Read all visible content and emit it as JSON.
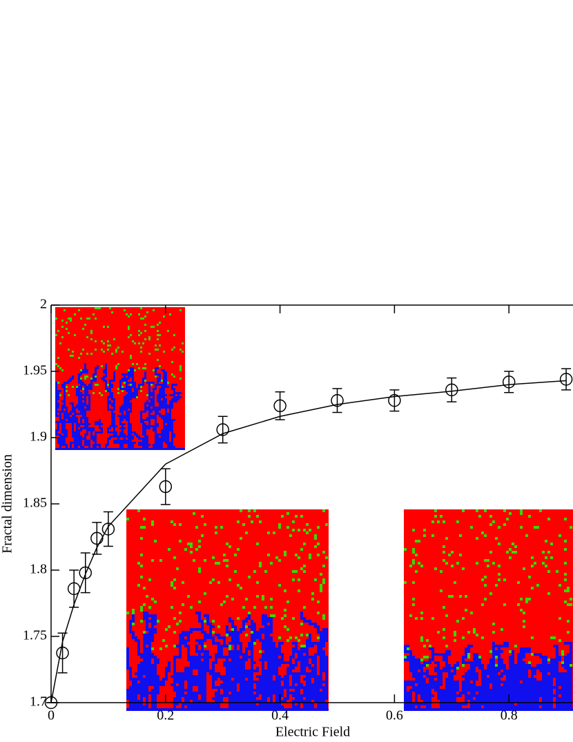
{
  "chart_data": {
    "type": "scatter",
    "x_label": "Electric Field",
    "y_label": "Fractal dimension",
    "x": [
      0,
      0.02,
      0.04,
      0.06,
      0.08,
      0.1,
      0.2,
      0.3,
      0.4,
      0.5,
      0.6,
      0.7,
      0.8,
      0.9
    ],
    "series": [
      {
        "color": "#000000",
        "marker": "open-circle",
        "values": [
          1.7,
          1.7375,
          1.786,
          1.798,
          1.824,
          1.831,
          1.863,
          1.906,
          1.924,
          1.928,
          1.928,
          1.936,
          1.942,
          1.944
        ],
        "errors": [
          0.0,
          0.015,
          0.014,
          0.015,
          0.012,
          0.013,
          0.0135,
          0.01,
          0.0105,
          0.009,
          0.008,
          0.009,
          0.008,
          0.008
        ]
      },
      {
        "color": "#000000",
        "marker": "line",
        "values": [
          1.7,
          1.746,
          1.774,
          1.797,
          1.817,
          1.833,
          1.88,
          1.903,
          1.916,
          1.925,
          1.931,
          1.935,
          1.94,
          1.943
        ]
      }
    ],
    "xlim": [
      0,
      1
    ],
    "ylim": [
      1.7,
      2
    ],
    "xticks": [
      0,
      0.2,
      0.4,
      0.6,
      0.8
    ],
    "yticks": [
      1.7,
      1.75,
      1.8,
      1.85,
      1.9,
      1.95,
      2
    ]
  }
}
